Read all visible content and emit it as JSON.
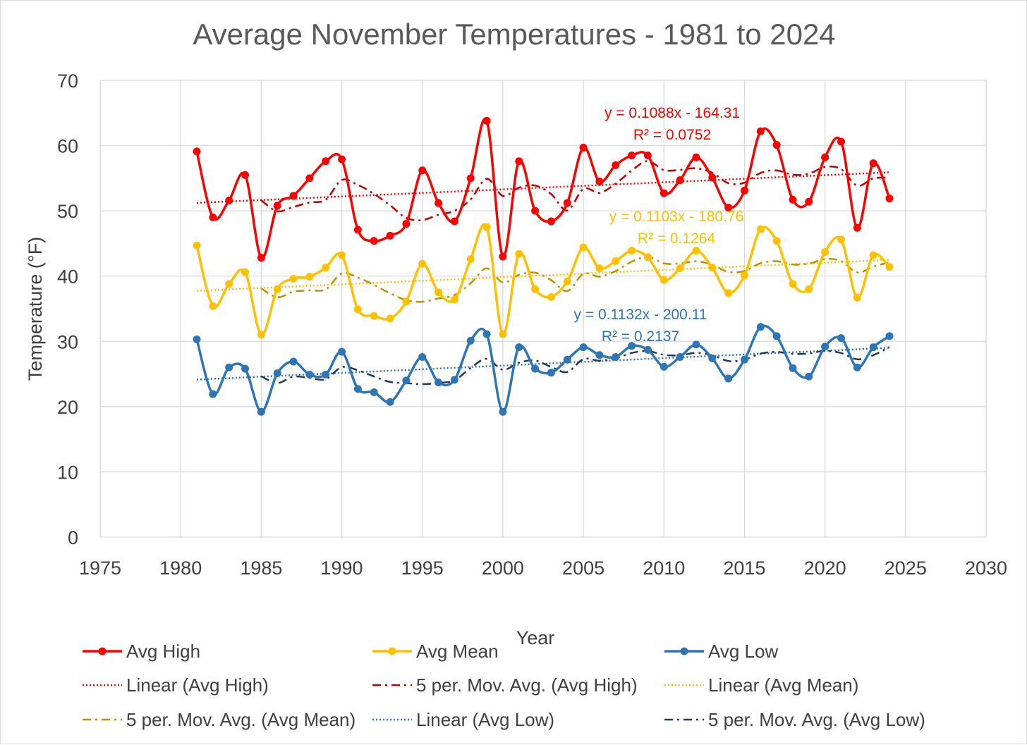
{
  "chart_data": {
    "type": "line",
    "title": "Average November Temperatures - 1981 to 2024",
    "xlabel": "Year",
    "ylabel": "Temperature (°F)",
    "xlim": [
      1975,
      2030
    ],
    "ylim": [
      0,
      70
    ],
    "x_ticks": [
      1975,
      1980,
      1985,
      1990,
      1995,
      2000,
      2005,
      2010,
      2015,
      2020,
      2025,
      2030
    ],
    "y_ticks": [
      0,
      10,
      20,
      30,
      40,
      50,
      60,
      70
    ],
    "grid": true,
    "legend_position": "bottom",
    "x": [
      1981,
      1982,
      1983,
      1984,
      1985,
      1986,
      1987,
      1988,
      1989,
      1990,
      1991,
      1992,
      1993,
      1994,
      1995,
      1996,
      1997,
      1998,
      1999,
      2000,
      2001,
      2002,
      2003,
      2004,
      2005,
      2006,
      2007,
      2008,
      2009,
      2010,
      2011,
      2012,
      2013,
      2014,
      2015,
      2016,
      2017,
      2018,
      2019,
      2020,
      2021,
      2022,
      2023,
      2024
    ],
    "series": [
      {
        "name": "Avg High",
        "color": "#ff0000",
        "values": [
          59.1,
          49.0,
          51.6,
          55.5,
          42.8,
          50.8,
          52.3,
          55.0,
          57.6,
          57.9,
          47.1,
          45.4,
          46.2,
          48.0,
          56.2,
          51.2,
          48.4,
          55.0,
          63.8,
          43.0,
          57.6,
          50.0,
          48.4,
          51.2,
          59.7,
          54.5,
          57.0,
          58.5,
          58.5,
          52.7,
          54.7,
          58.2,
          55.1,
          50.5,
          53.1,
          62.2,
          60.1,
          51.7,
          51.4,
          58.2,
          60.6,
          47.4,
          57.3,
          51.9
        ],
        "trend": {
          "name": "Linear (Avg High)",
          "slope": 0.1088,
          "intercept": -164.31,
          "r2": 0.0752,
          "equation": "y = 0.1088x - 164.31",
          "r2_label": "R² = 0.0752"
        },
        "moving_avg_name": "5 per. Mov. Avg. (Avg High)",
        "moving_avg_color": "#c00000"
      },
      {
        "name": "Avg Mean",
        "color": "#ffc000",
        "values": [
          44.7,
          35.4,
          38.8,
          40.6,
          31.0,
          38.0,
          39.6,
          39.9,
          41.3,
          43.2,
          34.9,
          33.9,
          33.5,
          36.1,
          41.9,
          37.5,
          36.4,
          42.6,
          47.5,
          31.1,
          43.4,
          38.0,
          36.8,
          39.2,
          44.4,
          41.2,
          42.3,
          43.9,
          42.9,
          39.4,
          41.2,
          43.9,
          41.3,
          37.4,
          40.1,
          47.2,
          45.4,
          38.8,
          38.0,
          43.7,
          45.6,
          36.7,
          43.2,
          41.4
        ],
        "trend": {
          "name": "Linear (Avg Mean)",
          "slope": 0.1103,
          "intercept": -180.76,
          "r2": 0.1264,
          "equation": "y = 0.1103x - 180.76",
          "r2_label": "R² = 0.1264"
        },
        "moving_avg_name": "5 per. Mov. Avg. (Avg Mean)",
        "moving_avg_color": "#bf9000"
      },
      {
        "name": "Avg Low",
        "color": "#2e75b6",
        "values": [
          30.3,
          21.9,
          26.0,
          25.8,
          19.2,
          25.1,
          26.9,
          24.9,
          24.9,
          28.4,
          22.7,
          22.2,
          20.7,
          24.0,
          27.6,
          23.7,
          24.1,
          30.1,
          31.1,
          19.2,
          29.1,
          25.8,
          25.2,
          27.2,
          29.1,
          27.9,
          27.6,
          29.3,
          28.7,
          26.1,
          27.6,
          29.5,
          27.4,
          24.3,
          27.2,
          32.2,
          30.8,
          25.9,
          24.6,
          29.2,
          30.5,
          26.0,
          29.1,
          30.8
        ],
        "trend": {
          "name": "Linear (Avg Low)",
          "slope": 0.1132,
          "intercept": -200.11,
          "r2": 0.2137,
          "equation": "y = 0.1132x - 200.11",
          "r2_label": "R² = 0.2137"
        },
        "moving_avg_name": "5 per. Mov. Avg. (Avg Low)",
        "moving_avg_color": "#1f3864"
      }
    ]
  }
}
